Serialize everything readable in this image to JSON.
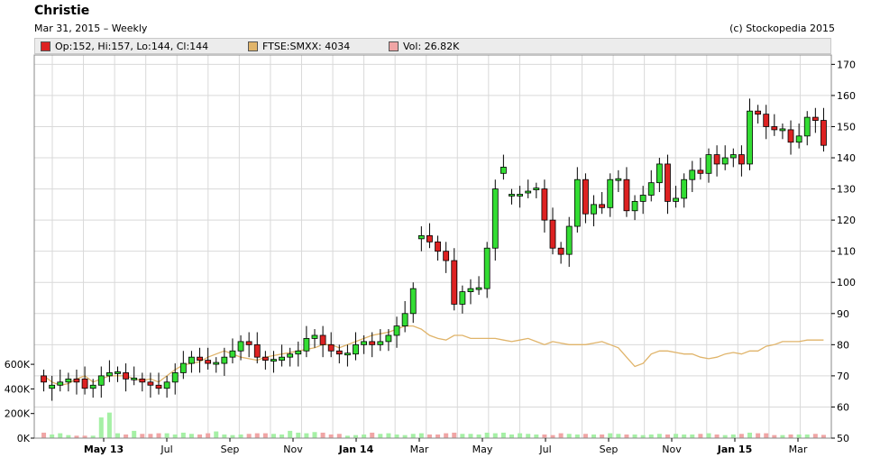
{
  "header": {
    "title": "Christie",
    "subtitle": "Mar 31, 2015 – Weekly",
    "credit": "(c) Stockopedia 2015"
  },
  "legend": {
    "ohlc": "Op:152, Hi:157, Lo:144, Cl:144",
    "index": "FTSE:SMXX: 4034",
    "volume": "Vol: 26.82K"
  },
  "colors": {
    "up": "#33dd33",
    "down": "#dd2222",
    "index_line": "#e0b46a",
    "vol_up": "#a5f0a5",
    "vol_down": "#f0a5a5",
    "grid": "#d9d9d9"
  },
  "chart_data": {
    "type": "candlestick",
    "x_ticks": [
      "May 13",
      "Jul",
      "Sep",
      "Nov",
      "Jan 14",
      "Mar",
      "May",
      "Jul",
      "Sep",
      "Nov",
      "Jan 15",
      "Mar"
    ],
    "bold_ticks": [
      "May 13",
      "Jan 14",
      "Jan 15"
    ],
    "y_ticks_right": [
      50,
      60,
      70,
      80,
      90,
      100,
      110,
      120,
      130,
      140,
      150,
      160,
      170
    ],
    "y_ticks_volume": [
      "0K",
      "200K",
      "400K",
      "600K"
    ],
    "ylim": [
      50,
      173
    ],
    "volume_max": 600000,
    "closes": [
      68,
      67,
      68,
      69,
      68,
      66,
      67,
      70,
      71,
      71,
      69,
      69,
      68,
      67,
      66,
      68,
      71,
      74,
      76,
      75,
      74,
      74,
      76,
      78,
      81,
      80,
      76,
      75,
      75,
      76,
      77,
      78,
      82,
      83,
      80,
      78,
      77,
      77,
      80,
      81,
      80,
      81,
      83,
      86,
      90,
      98,
      115,
      113,
      110,
      107,
      93,
      97,
      98,
      98,
      111,
      130,
      137,
      128,
      128,
      129,
      130,
      120,
      111,
      109,
      118,
      133,
      122,
      125,
      124,
      133,
      133,
      123,
      126,
      128,
      132,
      138,
      126,
      127,
      133,
      136,
      135,
      141,
      138,
      140,
      141,
      138,
      155,
      154,
      150,
      149,
      149,
      145,
      147,
      153,
      152,
      144
    ],
    "opens": [
      70,
      66,
      67,
      68,
      69,
      69,
      66,
      67,
      70,
      71,
      71,
      69,
      69,
      68,
      67,
      66,
      68,
      71,
      74,
      76,
      75,
      74,
      74,
      76,
      78,
      81,
      80,
      76,
      75,
      75,
      76,
      77,
      78,
      82,
      83,
      80,
      78,
      77,
      77,
      80,
      81,
      80,
      81,
      83,
      86,
      90,
      114,
      115,
      113,
      110,
      107,
      93,
      97,
      98,
      98,
      111,
      135,
      128,
      128,
      129,
      130,
      130,
      120,
      111,
      109,
      118,
      133,
      122,
      125,
      124,
      133,
      133,
      123,
      126,
      128,
      132,
      138,
      126,
      127,
      133,
      136,
      135,
      141,
      138,
      140,
      141,
      138,
      155,
      154,
      150,
      149,
      149,
      145,
      147,
      153,
      152
    ],
    "index_values": [
      70,
      68,
      67,
      67.5,
      69,
      70,
      68,
      69,
      70,
      70,
      70,
      69,
      68.5,
      69,
      68,
      70,
      72,
      73.5,
      74,
      74.5,
      76,
      77,
      78,
      77,
      76,
      75.5,
      75,
      76,
      76.5,
      77,
      77.5,
      78,
      78.5,
      79,
      80,
      80,
      79,
      80,
      81,
      82,
      83,
      83.5,
      84,
      85,
      86,
      86,
      85,
      83,
      82,
      81.5,
      83,
      83,
      82,
      82,
      82,
      82,
      81.5,
      81,
      81.5,
      82,
      81,
      80,
      81,
      80.5,
      80,
      80,
      80,
      80.5,
      81,
      80,
      79,
      76,
      73,
      74,
      77,
      78,
      78,
      77.5,
      77,
      77,
      76,
      75.5,
      76,
      77,
      77.5,
      77,
      78,
      78,
      79.5,
      80,
      81,
      81,
      81,
      81.5,
      81.5,
      81.5
    ],
    "volumes": [
      45000,
      30000,
      40000,
      25000,
      20000,
      20000,
      20000,
      170000,
      210000,
      40000,
      30000,
      60000,
      35000,
      35000,
      40000,
      40000,
      30000,
      45000,
      35000,
      30000,
      40000,
      55000,
      30000,
      25000,
      30000,
      35000,
      40000,
      40000,
      35000,
      30000,
      60000,
      45000,
      40000,
      50000,
      45000,
      30000,
      35000,
      20000,
      25000,
      30000,
      45000,
      35000,
      40000,
      30000,
      25000,
      35000,
      40000,
      30000,
      30000,
      40000,
      45000,
      35000,
      35000,
      30000,
      45000,
      40000,
      45000,
      30000,
      40000,
      35000,
      30000,
      30000,
      25000,
      40000,
      35000,
      30000,
      35000,
      30000,
      30000,
      40000,
      35000,
      30000,
      30000,
      25000,
      30000,
      35000,
      30000,
      35000,
      30000,
      30000,
      35000,
      40000,
      30000,
      25000,
      30000,
      35000,
      45000,
      40000,
      40000,
      25000,
      25000,
      30000,
      30000,
      30000,
      35000,
      26820
    ]
  }
}
